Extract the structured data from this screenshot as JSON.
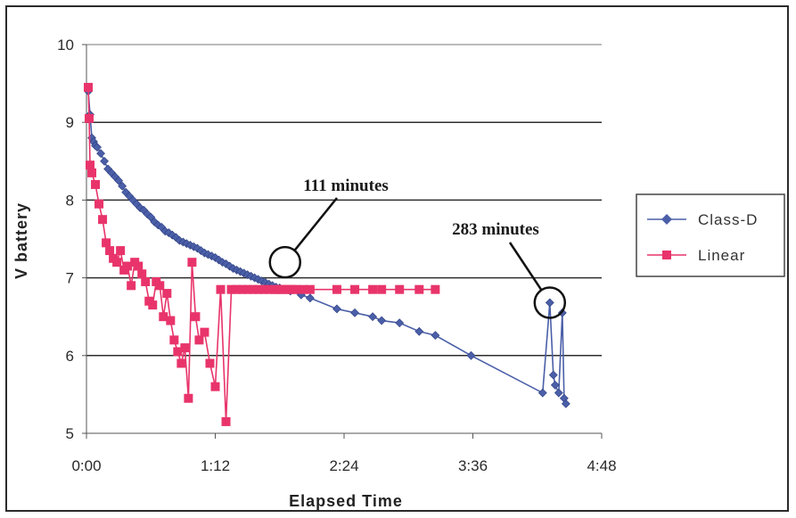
{
  "chart_data": {
    "type": "line",
    "xlabel": "Elapsed Time",
    "ylabel": "V battery",
    "xlim_minutes": [
      0,
      288
    ],
    "ylim": [
      5,
      10
    ],
    "x_ticks": [
      "0:00",
      "1:12",
      "2:24",
      "3:36",
      "4:48"
    ],
    "y_ticks": [
      "5",
      "6",
      "7",
      "8",
      "9",
      "10"
    ],
    "grid": "horizontal",
    "legend_position": "right",
    "series": [
      {
        "name": "Class-D",
        "color": "#4a5fa8",
        "marker": "diamond",
        "x": [
          1,
          2,
          3,
          4,
          5,
          6,
          8,
          10,
          12,
          14,
          16,
          18,
          20,
          22,
          24,
          26,
          28,
          30,
          32,
          34,
          36,
          38,
          40,
          42,
          44,
          46,
          48,
          50,
          52,
          54,
          56,
          58,
          60,
          62,
          64,
          66,
          68,
          70,
          72,
          74,
          76,
          78,
          80,
          82,
          84,
          86,
          88,
          90,
          92,
          94,
          96,
          98,
          100,
          102,
          104,
          106,
          108,
          111,
          114,
          120,
          125,
          140,
          150,
          160,
          165,
          175,
          186,
          195,
          215,
          255,
          259,
          261,
          262,
          264,
          266,
          267,
          268
        ],
        "y": [
          9.4,
          9.1,
          8.8,
          8.75,
          8.7,
          8.68,
          8.6,
          8.5,
          8.4,
          8.35,
          8.3,
          8.25,
          8.18,
          8.1,
          8.05,
          8.0,
          7.95,
          7.9,
          7.87,
          7.82,
          7.78,
          7.72,
          7.68,
          7.65,
          7.6,
          7.58,
          7.55,
          7.52,
          7.48,
          7.46,
          7.44,
          7.42,
          7.4,
          7.38,
          7.35,
          7.32,
          7.3,
          7.28,
          7.26,
          7.23,
          7.2,
          7.18,
          7.15,
          7.12,
          7.1,
          7.08,
          7.06,
          7.04,
          7.02,
          7.0,
          6.98,
          6.96,
          6.94,
          6.92,
          6.9,
          6.88,
          6.87,
          6.85,
          6.83,
          6.78,
          6.74,
          6.6,
          6.55,
          6.5,
          6.45,
          6.42,
          6.31,
          6.26,
          6.0,
          5.52,
          6.68,
          5.75,
          5.62,
          5.52,
          6.55,
          5.45,
          5.38
        ]
      },
      {
        "name": "Linear",
        "color": "#e8346a",
        "marker": "square",
        "x": [
          1,
          1.5,
          2,
          3,
          5,
          7,
          9,
          11,
          13,
          15,
          17,
          19,
          21,
          23,
          25,
          27,
          29,
          31,
          33,
          35,
          37,
          39,
          41,
          43,
          45,
          47,
          49,
          51,
          53,
          55,
          57,
          59,
          61,
          63,
          66,
          69,
          72,
          75,
          78,
          81,
          84,
          87,
          90,
          93,
          96,
          99,
          102,
          105,
          107,
          109,
          111,
          113,
          115,
          117,
          121,
          125,
          140,
          150,
          160,
          165,
          175,
          186,
          195
        ],
        "y": [
          9.45,
          9.05,
          8.45,
          8.35,
          8.2,
          7.95,
          7.75,
          7.45,
          7.35,
          7.25,
          7.2,
          7.35,
          7.1,
          7.15,
          6.9,
          7.2,
          7.15,
          7.05,
          6.95,
          6.7,
          6.65,
          6.95,
          6.9,
          6.5,
          6.8,
          6.45,
          6.2,
          6.05,
          5.9,
          6.1,
          5.45,
          7.2,
          6.5,
          6.2,
          6.3,
          5.9,
          5.6,
          6.85,
          5.15,
          6.85,
          6.85,
          6.85,
          6.85,
          6.85,
          6.85,
          6.85,
          6.85,
          6.85,
          6.85,
          6.85,
          6.85,
          6.85,
          6.85,
          6.85,
          6.85,
          6.85,
          6.85,
          6.85,
          6.85,
          6.85,
          6.85,
          6.85,
          6.85
        ]
      }
    ],
    "annotations": [
      {
        "text": "111 minutes",
        "x": 111,
        "y": 7.2
      },
      {
        "text": "283 minutes",
        "x": 259,
        "y": 6.68
      }
    ]
  }
}
